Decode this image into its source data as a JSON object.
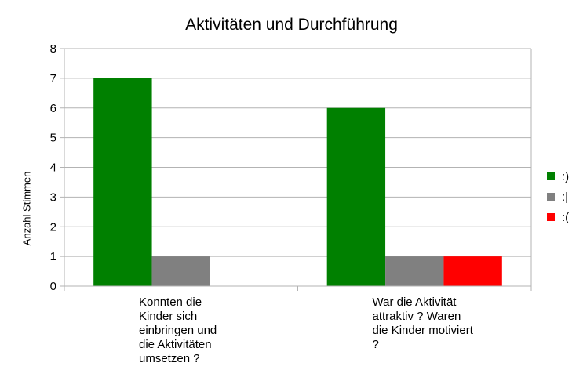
{
  "chart_data": {
    "type": "bar",
    "title": "Aktivitäten und Durchführung",
    "xlabel": "",
    "ylabel": "Anzahl Stimmen",
    "ylim": [
      0,
      8
    ],
    "yticks": [
      "0",
      "1",
      "2",
      "3",
      "4",
      "5",
      "6",
      "7",
      "8"
    ],
    "grid": true,
    "legend_position": "right",
    "categories": [
      "Konnten die Kinder sich einbringen und die Aktivitäten umsetzen ?",
      "War die Aktivität attraktiv ? Waren die Kinder motiviert ?"
    ],
    "series": [
      {
        "name": ":)",
        "color": "#008000",
        "values": [
          7,
          6
        ]
      },
      {
        "name": ":|",
        "color": "#808080",
        "values": [
          1,
          1
        ]
      },
      {
        "name": ":(",
        "color": "#ff0000",
        "values": [
          0,
          1
        ]
      }
    ]
  }
}
